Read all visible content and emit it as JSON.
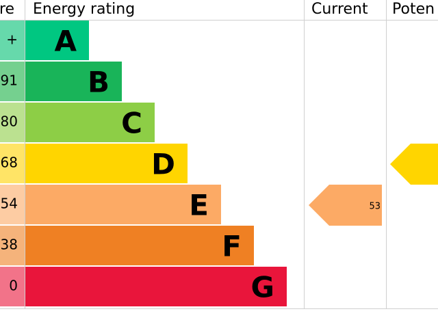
{
  "header": {
    "score": "re",
    "rating": "Energy rating",
    "current": "Current",
    "potential": "Poten"
  },
  "rows": [
    {
      "score": "+",
      "letter": "A",
      "color": "#00c781",
      "light": "#66d9ab"
    },
    {
      "score": "91",
      "letter": "B",
      "color": "#19b459",
      "light": "#75d08f"
    },
    {
      "score": "80",
      "letter": "C",
      "color": "#8dce46",
      "light": "#bbe190"
    },
    {
      "score": "68",
      "letter": "D",
      "color": "#ffd500",
      "light": "#ffe466"
    },
    {
      "score": "54",
      "letter": "E",
      "color": "#fcaa65",
      "light": "#fdcca3"
    },
    {
      "score": "38",
      "letter": "F",
      "color": "#ef8023",
      "light": "#f5b37b"
    },
    {
      "score": "0",
      "letter": "G",
      "color": "#e9153b",
      "light": "#f27389"
    }
  ],
  "current": {
    "value": 53,
    "color": "#fcaa65"
  },
  "potential": {
    "color": "#ffd500"
  }
}
